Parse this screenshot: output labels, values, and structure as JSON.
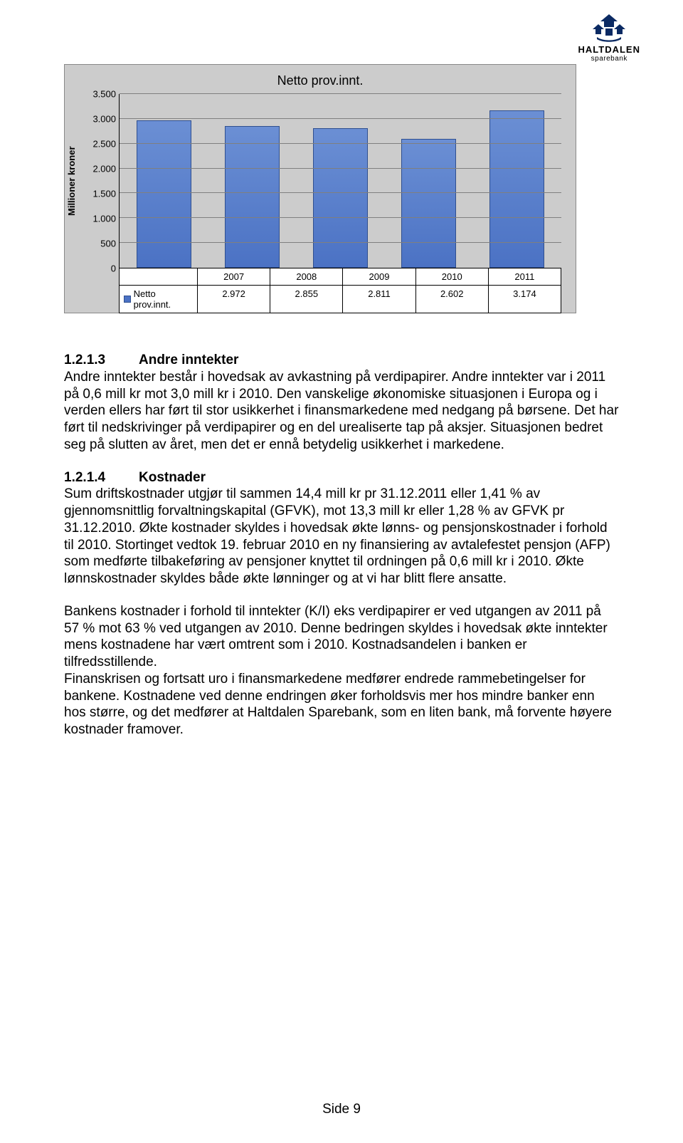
{
  "logo": {
    "brand": "HALTDALEN",
    "sub": "sparebank",
    "color": "#0b2a63"
  },
  "chart": {
    "type": "bar",
    "title": "Netto prov.innt.",
    "y_axis_label": "Millioner kroner",
    "y_max": 3500,
    "y_ticks": [
      "3.500",
      "3.000",
      "2.500",
      "2.000",
      "1.500",
      "1.000",
      "500",
      "0"
    ],
    "y_tick_values": [
      3500,
      3000,
      2500,
      2000,
      1500,
      1000,
      500,
      0
    ],
    "categories": [
      "2007",
      "2008",
      "2009",
      "2010",
      "2011"
    ],
    "series_label": "Netto prov.innt.",
    "values_display": [
      "2.972",
      "2.855",
      "2.811",
      "2.602",
      "3.174"
    ],
    "values": [
      2972,
      2855,
      2811,
      2602,
      3174
    ],
    "bar_color": "#4b72c4",
    "bar_border": "#2f4f8f",
    "grid_color": "#7f7f7f",
    "plot_bg": "#cccccc",
    "table_bg": "#ffffff"
  },
  "sections": {
    "s1": {
      "num": "1.2.1.3",
      "title": "Andre inntekter",
      "body": "Andre inntekter består i hovedsak av avkastning på verdipapirer. Andre inntekter var i 2011 på 0,6 mill kr mot 3,0 mill kr i 2010. Den vanskelige økonomiske situasjonen i Europa og i verden ellers har ført til stor usikkerhet i finansmarkedene med nedgang på børsene. Det har ført til nedskrivinger på verdipapirer og en del urealiserte tap på aksjer. Situasjonen bedret seg på slutten av året, men det er ennå betydelig usikkerhet i markedene."
    },
    "s2": {
      "num": "1.2.1.4",
      "title": "Kostnader",
      "body1": "Sum driftskostnader utgjør til sammen 14,4 mill kr pr 31.12.2011 eller 1,41 % av gjennomsnittlig forvaltningskapital (GFVK), mot 13,3 mill kr eller 1,28 % av GFVK pr 31.12.2010. Økte kostnader skyldes i hovedsak økte lønns- og pensjonskostnader i forhold til 2010. Stortinget vedtok 19. februar 2010 en ny finansiering av avtalefestet pensjon (AFP) som medførte tilbakeføring av pensjoner knyttet til ordningen på 0,6 mill kr i 2010. Økte lønnskostnader skyldes både økte lønninger og at vi har blitt flere ansatte.",
      "body2": "Bankens kostnader i forhold til inntekter (K/I) eks verdipapirer er ved utgangen av 2011 på",
      "body3": "57 % mot 63 % ved utgangen av 2010. Denne bedringen skyldes i hovedsak økte inntekter mens kostnadene har vært omtrent som i 2010. Kostnadsandelen i banken er tilfredsstillende.",
      "body4": "Finanskrisen og fortsatt uro i finansmarkedene medfører endrede rammebetingelser for bankene. Kostnadene ved denne endringen øker forholdsvis mer hos mindre banker enn hos større, og det medfører at Haltdalen Sparebank, som en liten bank, må forvente høyere kostnader framover."
    }
  },
  "footer": "Side 9"
}
